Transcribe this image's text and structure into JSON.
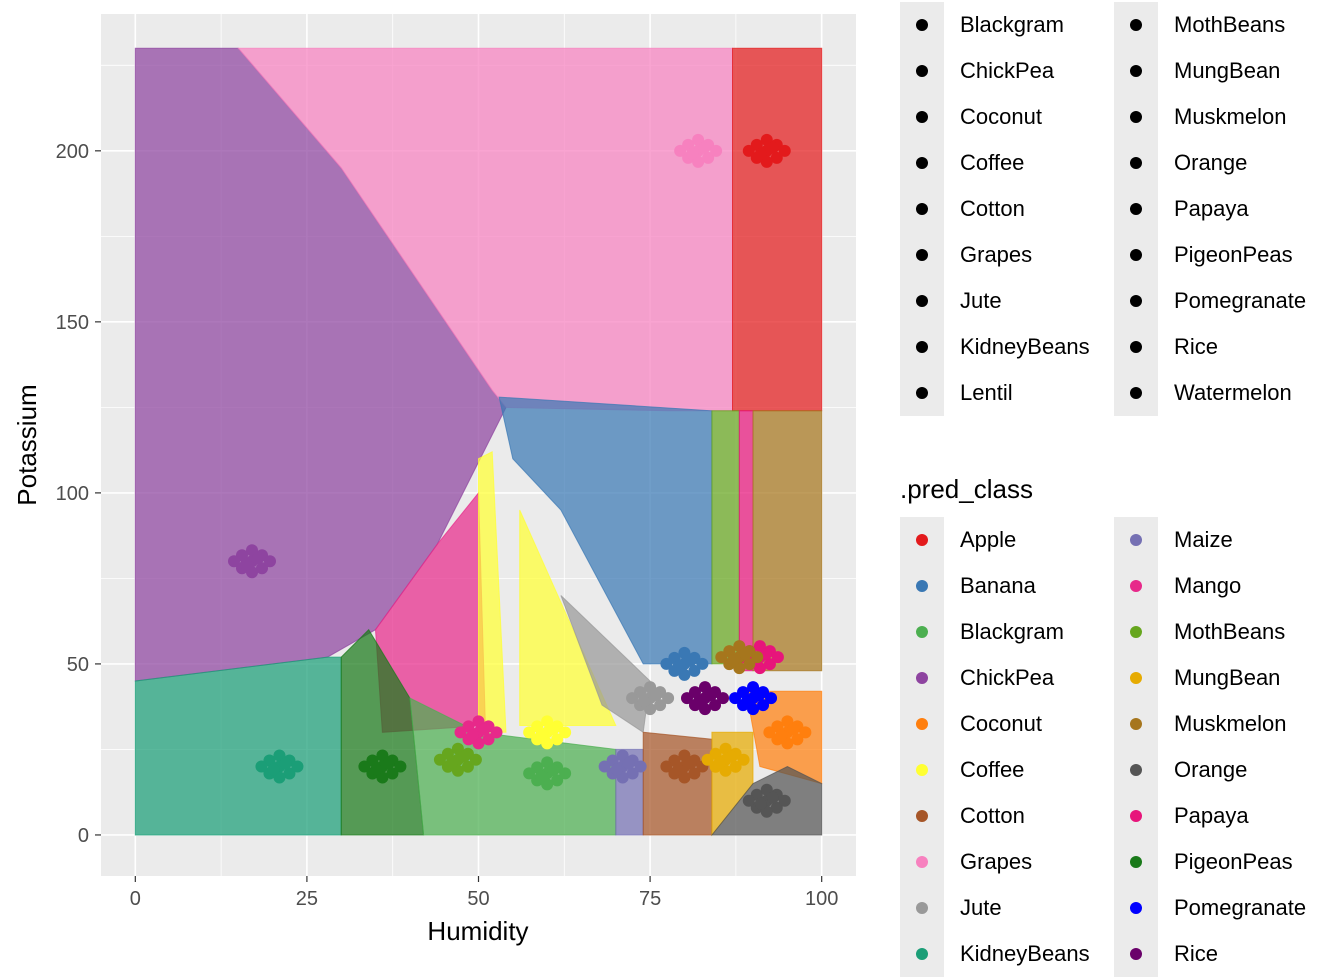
{
  "chart_data": {
    "type": "scatter",
    "xlabel": "Humidity",
    "ylabel": "Potassium",
    "xlim": [
      -5,
      105
    ],
    "ylim": [
      -12,
      240
    ],
    "x_ticks": [
      0,
      25,
      50,
      75,
      100
    ],
    "y_ticks": [
      0,
      50,
      100,
      150,
      200
    ],
    "grid": true,
    "legend_placement": "right",
    "background_description": "prediction grid over Humidity 0-100 and Potassium 0-230, filled by predicted class",
    "prediction_regions": [
      {
        "class": "ChickPea",
        "polygon": [
          [
            0,
            230
          ],
          [
            15,
            230
          ],
          [
            30,
            195
          ],
          [
            52,
            130
          ],
          [
            54,
            125
          ],
          [
            44,
            85
          ],
          [
            35,
            60
          ],
          [
            28,
            52
          ],
          [
            0,
            45
          ]
        ]
      },
      {
        "class": "Grapes",
        "polygon": [
          [
            15,
            230
          ],
          [
            87,
            230
          ],
          [
            87,
            124
          ],
          [
            78,
            124
          ],
          [
            54,
            125
          ],
          [
            52,
            130
          ],
          [
            30,
            195
          ]
        ]
      },
      {
        "class": "Apple",
        "polygon": [
          [
            87,
            230
          ],
          [
            100,
            230
          ],
          [
            100,
            124
          ],
          [
            87,
            124
          ]
        ]
      },
      {
        "class": "Banana",
        "polygon": [
          [
            53,
            128
          ],
          [
            84,
            124
          ],
          [
            84,
            50
          ],
          [
            74,
            50
          ],
          [
            62,
            95
          ],
          [
            55,
            110
          ]
        ]
      },
      {
        "class": "Mango",
        "polygon": [
          [
            35,
            60
          ],
          [
            44,
            85
          ],
          [
            50,
            100
          ],
          [
            51,
            32
          ],
          [
            36,
            30
          ]
        ]
      },
      {
        "class": "Coffee",
        "polygon": [
          [
            50,
            110
          ],
          [
            52,
            112
          ],
          [
            54,
            30
          ],
          [
            50,
            30
          ]
        ]
      },
      {
        "class": "Coffee",
        "polygon": [
          [
            56,
            95
          ],
          [
            70,
            32
          ],
          [
            56,
            32
          ]
        ]
      },
      {
        "class": "Jute",
        "polygon": [
          [
            62,
            70
          ],
          [
            75,
            45
          ],
          [
            74,
            30
          ],
          [
            68,
            38
          ]
        ]
      },
      {
        "class": "MothBeans",
        "polygon": [
          [
            84,
            124
          ],
          [
            88,
            124
          ],
          [
            88,
            50
          ],
          [
            84,
            50
          ]
        ]
      },
      {
        "class": "Papaya",
        "polygon": [
          [
            88,
            124
          ],
          [
            90,
            124
          ],
          [
            90,
            48
          ],
          [
            88,
            48
          ]
        ]
      },
      {
        "class": "Muskmelon",
        "polygon": [
          [
            90,
            124
          ],
          [
            100,
            124
          ],
          [
            100,
            48
          ],
          [
            90,
            48
          ]
        ]
      },
      {
        "class": "Coconut",
        "polygon": [
          [
            89,
            42
          ],
          [
            100,
            42
          ],
          [
            100,
            15
          ],
          [
            91,
            20
          ]
        ]
      },
      {
        "class": "KidneyBeans",
        "polygon": [
          [
            0,
            45
          ],
          [
            28,
            52
          ],
          [
            30,
            52
          ],
          [
            30,
            0
          ],
          [
            0,
            0
          ]
        ]
      },
      {
        "class": "PigeonPeas",
        "polygon": [
          [
            30,
            52
          ],
          [
            34,
            60
          ],
          [
            40,
            40
          ],
          [
            42,
            0
          ],
          [
            30,
            0
          ]
        ]
      },
      {
        "class": "Blackgram",
        "polygon": [
          [
            40,
            40
          ],
          [
            50,
            30
          ],
          [
            70,
            25
          ],
          [
            70,
            0
          ],
          [
            42,
            0
          ]
        ]
      },
      {
        "class": "Maize",
        "polygon": [
          [
            70,
            25
          ],
          [
            74,
            25
          ],
          [
            74,
            0
          ],
          [
            70,
            0
          ]
        ]
      },
      {
        "class": "Cotton",
        "polygon": [
          [
            74,
            30
          ],
          [
            84,
            28
          ],
          [
            84,
            0
          ],
          [
            74,
            0
          ]
        ]
      },
      {
        "class": "MungBean",
        "polygon": [
          [
            84,
            30
          ],
          [
            90,
            30
          ],
          [
            90,
            15
          ],
          [
            84,
            0
          ]
        ]
      },
      {
        "class": "Orange",
        "polygon": [
          [
            84,
            0
          ],
          [
            90,
            15
          ],
          [
            95,
            20
          ],
          [
            100,
            15
          ],
          [
            100,
            0
          ]
        ]
      }
    ],
    "clusters": [
      {
        "class": "Grapes",
        "x": 82,
        "y": 200
      },
      {
        "class": "Apple",
        "x": 92,
        "y": 200
      },
      {
        "class": "ChickPea",
        "x": 17,
        "y": 80
      },
      {
        "class": "KidneyBeans",
        "x": 21,
        "y": 20
      },
      {
        "class": "PigeonPeas",
        "x": 36,
        "y": 20
      },
      {
        "class": "MothBeans",
        "x": 47,
        "y": 22
      },
      {
        "class": "Mango",
        "x": 50,
        "y": 30
      },
      {
        "class": "Coffee",
        "x": 60,
        "y": 30
      },
      {
        "class": "Blackgram",
        "x": 60,
        "y": 18
      },
      {
        "class": "Cotton",
        "x": 80,
        "y": 20
      },
      {
        "class": "Maize",
        "x": 71,
        "y": 20
      },
      {
        "class": "Banana",
        "x": 80,
        "y": 50
      },
      {
        "class": "Jute",
        "x": 75,
        "y": 40
      },
      {
        "class": "Rice",
        "x": 83,
        "y": 40
      },
      {
        "class": "Pomegranate",
        "x": 90,
        "y": 40
      },
      {
        "class": "Papaya",
        "x": 91,
        "y": 52
      },
      {
        "class": "Muskmelon",
        "x": 88,
        "y": 52
      },
      {
        "class": "Coconut",
        "x": 95,
        "y": 30
      },
      {
        "class": "MungBean",
        "x": 86,
        "y": 22
      },
      {
        "class": "Orange",
        "x": 92,
        "y": 10
      }
    ]
  },
  "legend_top": {
    "column1": [
      "Blackgram",
      "ChickPea",
      "Coconut",
      "Coffee",
      "Cotton",
      "Grapes",
      "Jute",
      "KidneyBeans",
      "Lentil"
    ],
    "column2": [
      "MothBeans",
      "MungBean",
      "Muskmelon",
      "Orange",
      "Papaya",
      "PigeonPeas",
      "Pomegranate",
      "Rice",
      "Watermelon"
    ],
    "dot_color": "#000000"
  },
  "legend_pred": {
    "title": ".pred_class",
    "column1": [
      {
        "label": "Apple",
        "color": "#e31a1c"
      },
      {
        "label": "Banana",
        "color": "#3a78b4"
      },
      {
        "label": "Blackgram",
        "color": "#4caf50"
      },
      {
        "label": "ChickPea",
        "color": "#8e44a0"
      },
      {
        "label": "Coconut",
        "color": "#ff7f0e"
      },
      {
        "label": "Coffee",
        "color": "#ffff33"
      },
      {
        "label": "Cotton",
        "color": "#a65628"
      },
      {
        "label": "Grapes",
        "color": "#f781bf"
      },
      {
        "label": "Jute",
        "color": "#999999"
      },
      {
        "label": "KidneyBeans",
        "color": "#1b9e77"
      }
    ],
    "column2": [
      {
        "label": "Maize",
        "color": "#7570b3"
      },
      {
        "label": "Mango",
        "color": "#e7298a"
      },
      {
        "label": "MothBeans",
        "color": "#66a61e"
      },
      {
        "label": "MungBean",
        "color": "#e6ab02"
      },
      {
        "label": "Muskmelon",
        "color": "#a6761d"
      },
      {
        "label": "Orange",
        "color": "#555555"
      },
      {
        "label": "Papaya",
        "color": "#e7157b"
      },
      {
        "label": "PigeonPeas",
        "color": "#1a7a1a"
      },
      {
        "label": "Pomegranate",
        "color": "#0000ff"
      },
      {
        "label": "Rice",
        "color": "#6a006a"
      }
    ]
  }
}
